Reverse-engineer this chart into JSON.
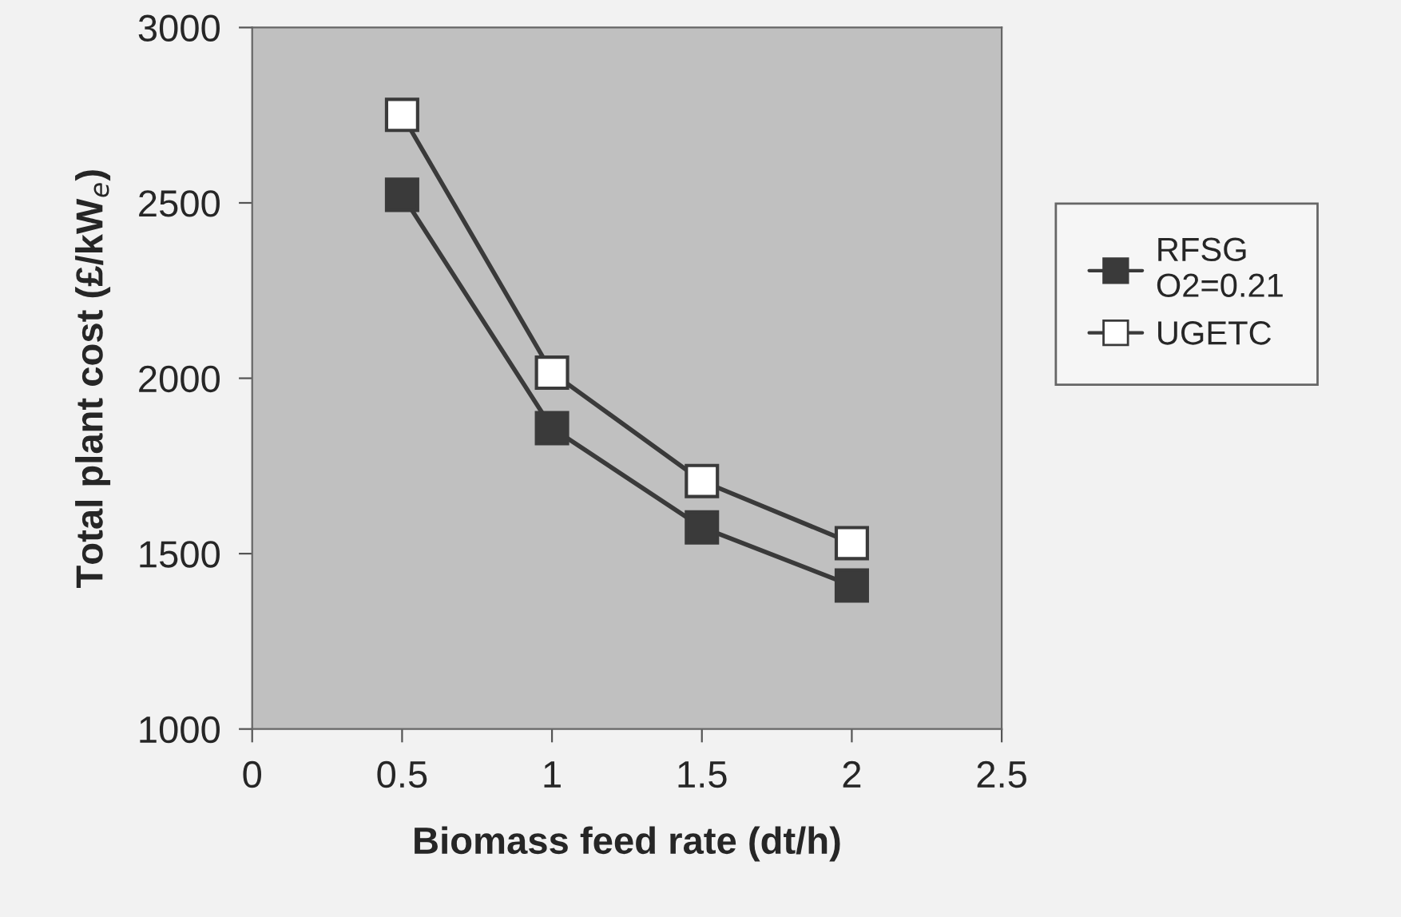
{
  "chart_data": {
    "type": "line",
    "xlabel": "Biomass feed rate (dt/h)",
    "ylabel": "Total plant cost (£/kW$_{e}$)",
    "x": [
      0.5,
      1,
      1.5,
      2
    ],
    "series": [
      {
        "name": "RFSG\nO2=0.21",
        "color": "#3a3a3a",
        "values": [
          2523,
          1858,
          1575,
          1409
        ]
      },
      {
        "name": "UGETC",
        "color": "#3a3a3a",
        "values": [
          2751,
          2016,
          1707,
          1530
        ]
      }
    ],
    "xlim": [
      0,
      2.5
    ],
    "xticks": [
      0,
      0.5,
      1,
      1.5,
      2,
      2.5
    ],
    "ylim": [
      1000,
      3000
    ],
    "yticks": [
      1000,
      1500,
      2000,
      2500,
      3000
    ],
    "grid": false,
    "legend": "right",
    "marker": "square",
    "line_style": "solid"
  }
}
